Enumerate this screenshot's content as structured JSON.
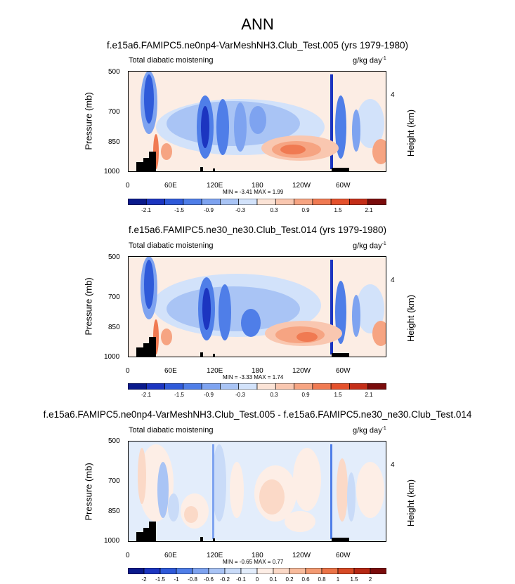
{
  "page_title": "ANN",
  "chart_data": [
    {
      "type": "heatmap",
      "title": "f.e15a6.FAMIPC5.ne0np4-VarMeshNH3.Club_Test.005 (yrs 1979-1980)",
      "variable": "Total diabatic moistening",
      "units_base": "g/kg day",
      "units_exp": "-1",
      "ylabel": "Pressure (mb)",
      "y2label": "Height (km)",
      "y2ticks": [
        "4"
      ],
      "yticks": [
        "500",
        "700",
        "850",
        "1000"
      ],
      "xticks": [
        "0",
        "60E",
        "120E",
        "180",
        "120W",
        "60W"
      ],
      "stats": "MIN =  -3.41  MAX =  1.99",
      "colorbar_labels": [
        "-2.1",
        "-1.5",
        "-0.9",
        "-0.3",
        "0.3",
        "0.9",
        "1.5",
        "2.1"
      ]
    },
    {
      "type": "heatmap",
      "title": "f.e15a6.FAMIPC5.ne30_ne30.Club_Test.014 (yrs 1979-1980)",
      "variable": "Total diabatic moistening",
      "units_base": "g/kg day",
      "units_exp": "-1",
      "ylabel": "Pressure (mb)",
      "y2label": "Height (km)",
      "y2ticks": [
        "4"
      ],
      "yticks": [
        "500",
        "700",
        "850",
        "1000"
      ],
      "xticks": [
        "0",
        "60E",
        "120E",
        "180",
        "120W",
        "60W"
      ],
      "stats": "MIN =  -3.33  MAX =  1.74",
      "colorbar_labels": [
        "-2.1",
        "-1.5",
        "-0.9",
        "-0.3",
        "0.3",
        "0.9",
        "1.5",
        "2.1"
      ]
    },
    {
      "type": "heatmap",
      "title": "f.e15a6.FAMIPC5.ne0np4-VarMeshNH3.Club_Test.005 - f.e15a6.FAMIPC5.ne30_ne30.Club_Test.014",
      "variable": "Total diabatic moistening",
      "units_base": "g/kg day",
      "units_exp": "-1",
      "ylabel": "Pressure (mb)",
      "y2label": "Height (km)",
      "y2ticks": [
        "4"
      ],
      "yticks": [
        "500",
        "700",
        "850",
        "1000"
      ],
      "xticks": [
        "0",
        "60E",
        "120E",
        "180",
        "120W",
        "60W"
      ],
      "stats": "MIN =  -0.65  MAX =  0.77",
      "colorbar_labels": [
        "-2",
        "-1.5",
        "-1",
        "-0.8",
        "-0.6",
        "-0.2",
        "-0.1",
        "0",
        "0.1",
        "0.2",
        "0.6",
        "0.8",
        "1",
        "1.5",
        "2"
      ]
    }
  ],
  "colors": {
    "abs_scale": [
      "#0a1a8c",
      "#1c35c0",
      "#2f5ad9",
      "#4f7ee8",
      "#7ea3f0",
      "#a9c4f5",
      "#d2e2fa",
      "#fbe3d6",
      "#f9c7b0",
      "#f6a482",
      "#f07a52",
      "#e4512c",
      "#c42e18",
      "#7a0c0c"
    ],
    "diff_scale": [
      "#0a1a8c",
      "#1c35c0",
      "#2f5ad9",
      "#4f7ee8",
      "#7ea3f0",
      "#a9c4f5",
      "#c9dbf8",
      "#e3edfb",
      "#fdeee6",
      "#fbd9c7",
      "#f8bb9c",
      "#f39a72",
      "#eb7448",
      "#d74a26",
      "#b52814",
      "#7a0c0c"
    ],
    "land": "#000000"
  }
}
